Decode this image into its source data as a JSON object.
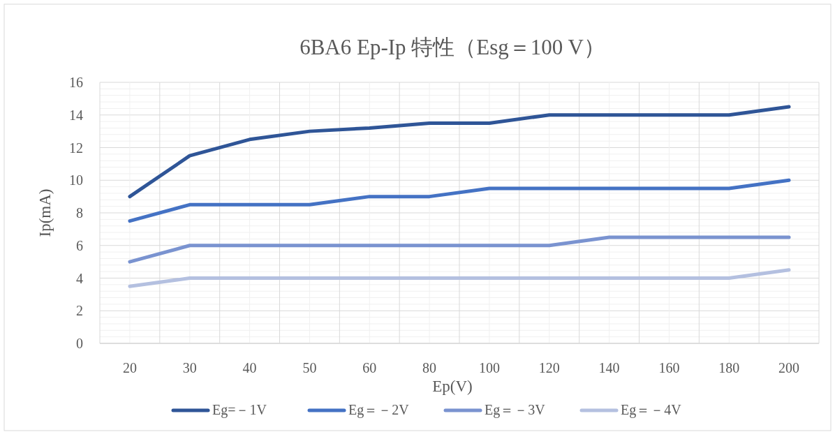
{
  "chart_data": {
    "type": "line",
    "title": "6BA6 Ep-Ip 特性（Esg＝100 V）",
    "xlabel": "Ep(V)",
    "ylabel": "Ip(mA)",
    "categories": [
      "20",
      "30",
      "40",
      "50",
      "60",
      "80",
      "100",
      "120",
      "140",
      "160",
      "180",
      "200"
    ],
    "series": [
      {
        "name": "Eg=－1V",
        "color": "#2f5597",
        "values": [
          9,
          11.5,
          12.5,
          13,
          13.2,
          13.5,
          13.5,
          14,
          14,
          14,
          14,
          14.5
        ]
      },
      {
        "name": "Eg＝－2V",
        "color": "#4472c4",
        "values": [
          7.5,
          8.5,
          8.5,
          8.5,
          9,
          9,
          9.5,
          9.5,
          9.5,
          9.5,
          9.5,
          10
        ]
      },
      {
        "name": "Eg＝－3V",
        "color": "#7a93d0",
        "values": [
          5,
          6,
          6,
          6,
          6,
          6,
          6,
          6,
          6.5,
          6.5,
          6.5,
          6.5
        ]
      },
      {
        "name": "Eg＝－4V",
        "color": "#b4c0e0",
        "values": [
          3.5,
          4,
          4,
          4,
          4,
          4,
          4,
          4,
          4,
          4,
          4,
          4.5
        ]
      }
    ],
    "ylim": [
      0,
      16
    ],
    "yticks": [
      0,
      2,
      4,
      6,
      8,
      10,
      12,
      14,
      16
    ],
    "grid": true,
    "legend": "bottom",
    "marker": "none",
    "line_style": "solid"
  }
}
